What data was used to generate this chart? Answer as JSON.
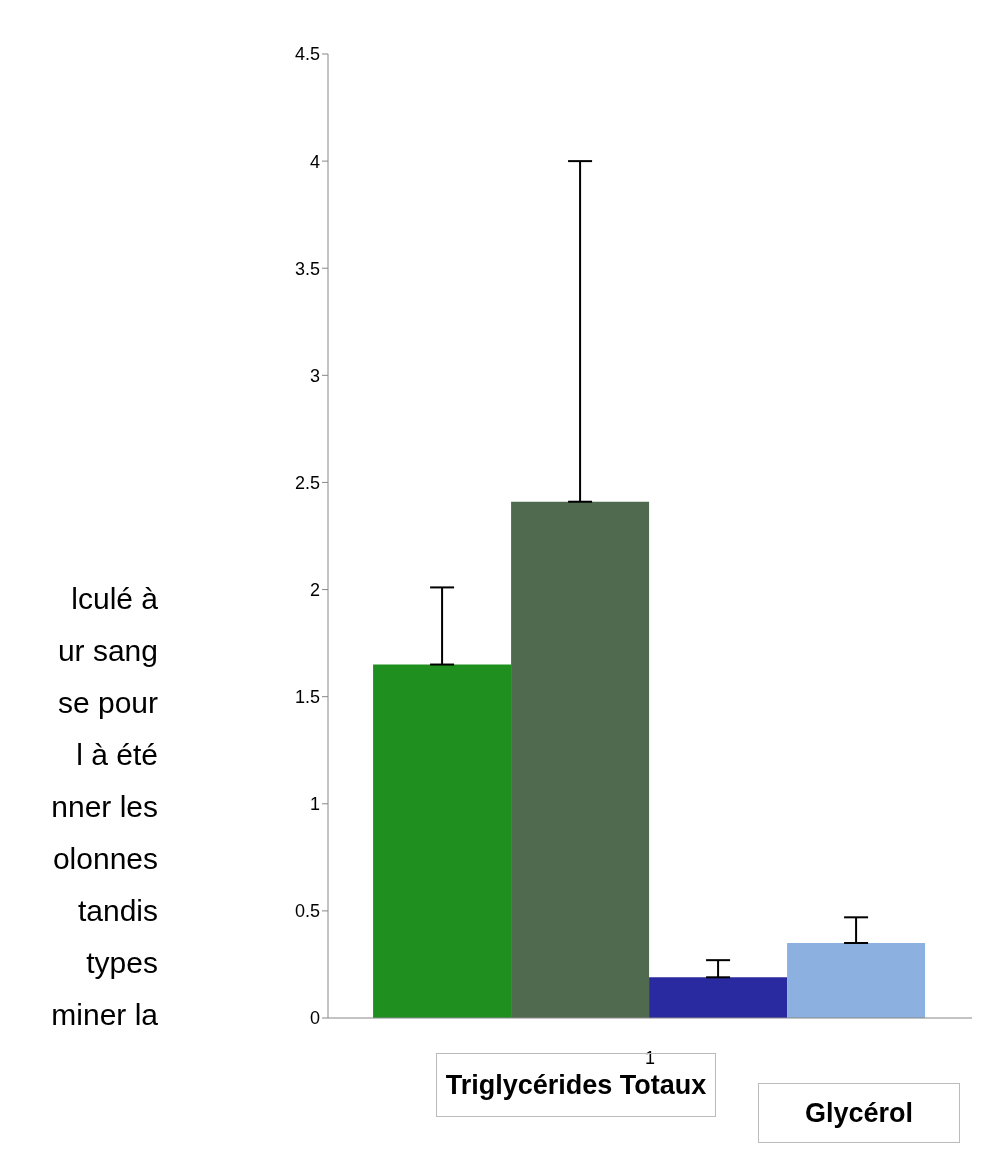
{
  "chart_data": {
    "type": "bar",
    "categories": [
      "1"
    ],
    "series": [
      {
        "color": "#1f8f1f",
        "values": [
          1.65
        ],
        "errors": [
          [
            1.65,
            2.01
          ]
        ]
      },
      {
        "color": "#4f6a4f",
        "values": [
          2.41
        ],
        "errors": [
          [
            2.41,
            4.0
          ]
        ]
      },
      {
        "color": "#2a2aa0",
        "values": [
          0.19
        ],
        "errors": [
          [
            0.19,
            0.27
          ]
        ]
      },
      {
        "color": "#8cb0e0",
        "values": [
          0.35
        ],
        "errors": [
          [
            0.35,
            0.47
          ]
        ]
      }
    ],
    "ylim": [
      0,
      4.5
    ],
    "yticks": [
      0,
      0.5,
      1,
      1.5,
      2,
      2.5,
      3,
      3.5,
      4,
      4.5
    ],
    "grid": false,
    "legend": false,
    "annotations": [
      "lculé à\nur sang\nse pour\nl à été\nnner les\nolonnes\ntandis\ntypes\nminer la",
      "Triglycérides Totaux",
      "Glycérol"
    ]
  }
}
